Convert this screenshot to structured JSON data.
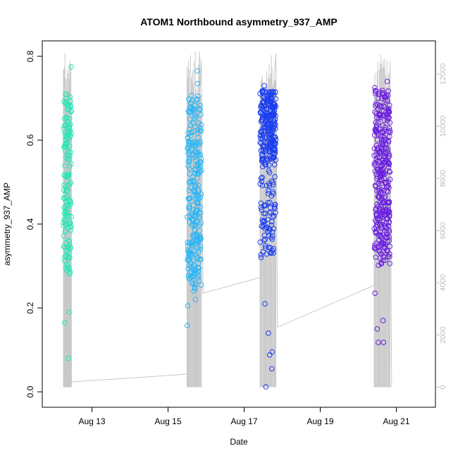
{
  "chart_data": {
    "type": "scatter",
    "title": "ATOM1 Northbound asymmetry_937_AMP",
    "xlabel": "Date",
    "ylabel": "asymmetry_937_AMP",
    "x_axis": {
      "unit": "date",
      "range_days": [
        "Aug 11 22:00",
        "Aug 21 22:00"
      ],
      "ticks": [
        "Aug 13",
        "Aug 15",
        "Aug 17",
        "Aug 19",
        "Aug 21"
      ]
    },
    "y_axis": {
      "range": [
        -0.02,
        0.82
      ],
      "ticks": [
        "0.0",
        "0.2",
        "0.4",
        "0.6",
        "0.8"
      ]
    },
    "y2_axis": {
      "range": [
        -500,
        13000
      ],
      "ticks": [
        "0",
        "2000",
        "4000",
        "6000",
        "8000",
        "10000",
        "12000"
      ],
      "color": "#bdbdbd"
    },
    "grid": false,
    "legend": "none",
    "clusters": [
      {
        "start": "Aug 12 06:00",
        "end": "Aug 12 11:00",
        "color": "#1de9b6",
        "count": 140,
        "ymin": 0.28,
        "ymax": 0.71,
        "outliers": [
          0.775,
          0.19,
          0.165,
          0.08
        ]
      },
      {
        "start": "Aug 15 12:00",
        "end": "Aug 15 21:00",
        "color": "#29b6f6",
        "count": 260,
        "ymin": 0.24,
        "ymax": 0.71,
        "outliers": [
          0.765,
          0.735,
          0.22,
          0.205,
          0.158
        ]
      },
      {
        "start": "Aug 17 10:00",
        "end": "Aug 17 20:00",
        "color": "#1a3df0",
        "count": 320,
        "ymin": 0.32,
        "ymax": 0.72,
        "outliers": [
          0.73,
          0.21,
          0.14,
          0.095,
          0.088,
          0.055,
          0.012
        ]
      },
      {
        "start": "Aug 20 10:00",
        "end": "Aug 20 20:00",
        "color": "#6a1de0",
        "count": 330,
        "ymin": 0.3,
        "ymax": 0.72,
        "outliers": [
          0.74,
          0.725,
          0.235,
          0.17,
          0.15,
          0.118,
          0.118
        ]
      }
    ],
    "count_line": {
      "color": "#c8c8c8",
      "points": [
        [
          "Aug 12 06:00",
          0
        ],
        [
          "Aug 12 10:00",
          11800
        ],
        [
          "Aug 12 11:00",
          200
        ],
        [
          "Aug 15 12:00",
          500
        ],
        [
          "Aug 15 21:00",
          12500
        ],
        [
          "Aug 15 22:00",
          3600
        ],
        [
          "Aug 17 10:00",
          4200
        ],
        [
          "Aug 17 20:00",
          12800
        ],
        [
          "Aug 17 21:00",
          2300
        ],
        [
          "Aug 20 10:00",
          3900
        ],
        [
          "Aug 20 20:00",
          12200
        ],
        [
          "Aug 20 21:00",
          0
        ]
      ]
    }
  }
}
